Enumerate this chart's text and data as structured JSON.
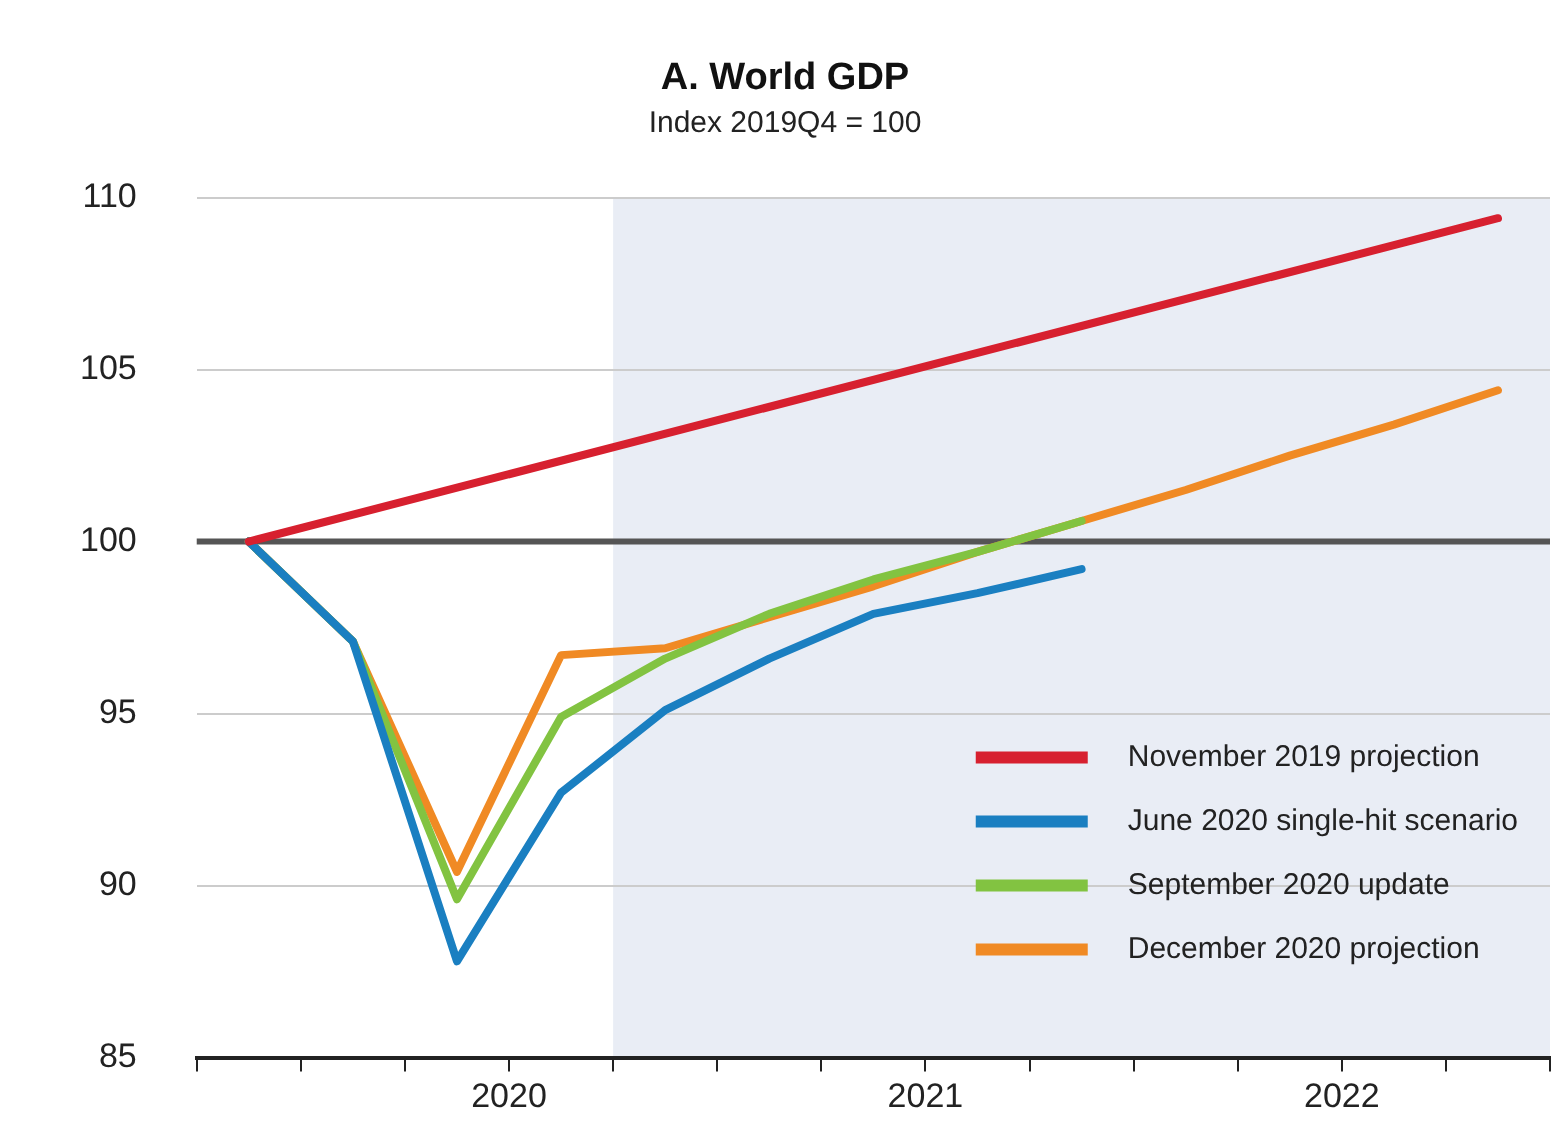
{
  "chart_data": {
    "type": "line",
    "title": "A. World GDP",
    "subtitle": "Index 2019Q4 = 100",
    "series": [
      {
        "name": "November 2019 projection",
        "color": "#d7202f",
        "x": [
          2019.875,
          2022.875
        ],
        "values": [
          100,
          109.4
        ]
      },
      {
        "name": "June 2020 single-hit scenario",
        "color": "#1a7fc1",
        "x": [
          2019.875,
          2020.125,
          2020.375,
          2020.625,
          2020.875,
          2021.125,
          2021.375,
          2021.625,
          2021.875
        ],
        "values": [
          100,
          97.1,
          87.8,
          92.7,
          95.1,
          96.6,
          97.9,
          98.5,
          99.2
        ]
      },
      {
        "name": "September 2020 update",
        "color": "#82c341",
        "x": [
          2019.875,
          2020.125,
          2020.375,
          2020.625,
          2020.875,
          2021.125,
          2021.375,
          2021.625,
          2021.875
        ],
        "values": [
          100,
          97.1,
          89.6,
          94.9,
          96.6,
          97.9,
          98.9,
          99.7,
          100.6
        ]
      },
      {
        "name": "December 2020 projection",
        "color": "#f08a24",
        "x": [
          2019.875,
          2020.125,
          2020.375,
          2020.625,
          2020.875,
          2021.125,
          2021.375,
          2021.625,
          2021.875,
          2022.125,
          2022.375,
          2022.625,
          2022.875
        ],
        "values": [
          100,
          97.1,
          90.4,
          96.7,
          96.9,
          97.8,
          98.7,
          99.7,
          100.6,
          101.5,
          102.5,
          103.4,
          104.4
        ]
      }
    ],
    "xlim": [
      2019.75,
      2023.0
    ],
    "xticks": [
      {
        "value": 2019.75,
        "label": null
      },
      {
        "value": 2020.0,
        "label": null
      },
      {
        "value": 2020.25,
        "label": null
      },
      {
        "value": 2020.5,
        "label": "2020"
      },
      {
        "value": 2020.75,
        "label": null
      },
      {
        "value": 2021.0,
        "label": null
      },
      {
        "value": 2021.25,
        "label": null
      },
      {
        "value": 2021.5,
        "label": "2021"
      },
      {
        "value": 2021.75,
        "label": null
      },
      {
        "value": 2022.0,
        "label": null
      },
      {
        "value": 2022.25,
        "label": null
      },
      {
        "value": 2022.5,
        "label": "2022"
      },
      {
        "value": 2022.75,
        "label": null
      },
      {
        "value": 2023.0,
        "label": null
      }
    ],
    "ylim": [
      85,
      110
    ],
    "yticks": [
      85,
      90,
      95,
      100,
      105,
      110
    ],
    "grid": "y",
    "legend": "bottom right",
    "marker": "none",
    "line_style": "solid",
    "ref_lines": [
      {
        "axis": "y",
        "value": 100,
        "color": "#555555"
      }
    ],
    "bands": [
      {
        "axis": "x",
        "from": 2020.75,
        "to": 2023.0,
        "color": "#e9edf5"
      }
    ]
  }
}
